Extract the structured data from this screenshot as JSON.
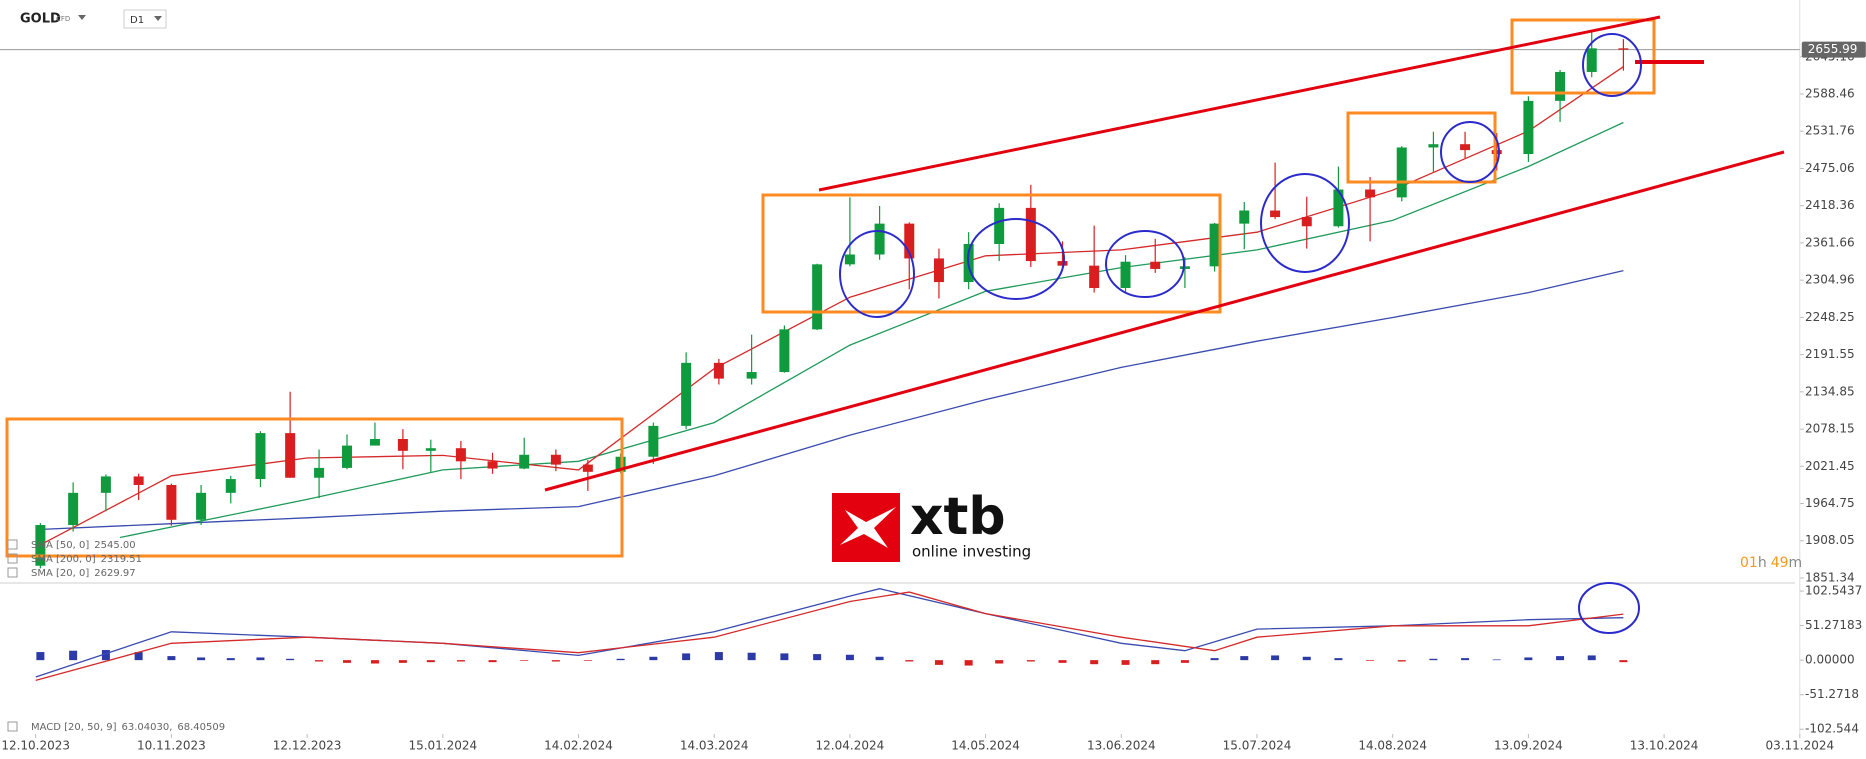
{
  "header": {
    "symbol": "GOLD",
    "badge": "CFD",
    "timeframe": "D1"
  },
  "countdown": {
    "hours": "01",
    "hours_unit": "h",
    "minutes": "49",
    "minutes_unit": "m"
  },
  "logo": {
    "brand": "xtb",
    "tagline": "online investing"
  },
  "chart_data": [
    {
      "type": "candlestick",
      "x": [
        "2023-10-13",
        "2023-10-20",
        "2023-10-27",
        "2023-11-03",
        "2023-11-10",
        "2023-11-17",
        "2023-11-24",
        "2023-12-01",
        "2023-12-08",
        "2023-12-15",
        "2023-12-22",
        "2023-12-29",
        "2024-01-05",
        "2024-01-12",
        "2024-01-19",
        "2024-01-26",
        "2024-02-02",
        "2024-02-09",
        "2024-02-16",
        "2024-02-23",
        "2024-03-01",
        "2024-03-08",
        "2024-03-15",
        "2024-03-22",
        "2024-03-29",
        "2024-04-05",
        "2024-04-12",
        "2024-04-19",
        "2024-04-26",
        "2024-05-03",
        "2024-05-10",
        "2024-05-17",
        "2024-05-24",
        "2024-05-31",
        "2024-06-07",
        "2024-06-14",
        "2024-06-21",
        "2024-06-28",
        "2024-07-05",
        "2024-07-12",
        "2024-07-19",
        "2024-07-26",
        "2024-08-02",
        "2024-08-09",
        "2024-08-16",
        "2024-08-23",
        "2024-08-30",
        "2024-09-06",
        "2024-09-13",
        "2024-09-20",
        "2024-09-27",
        "2024-10-04"
      ],
      "open": [
        1870,
        1932,
        1981,
        2006,
        1993,
        1940,
        1981,
        2002,
        2072,
        2004,
        2019,
        2053,
        2063,
        2045,
        2049,
        2029,
        2018,
        2039,
        2024,
        2013,
        2036,
        2083,
        2179,
        2155,
        2165,
        2230,
        2329,
        2344,
        2391,
        2338,
        2302,
        2360,
        2415,
        2334,
        2327,
        2293,
        2333,
        2322,
        2326,
        2391,
        2411,
        2401,
        2387,
        2443,
        2431,
        2507,
        2512,
        2503,
        2497,
        2578,
        2622,
        2658
      ],
      "high": [
        1935,
        1997,
        2009,
        2010,
        1995,
        1993,
        2007,
        2075,
        2135,
        2047,
        2070,
        2088,
        2078,
        2062,
        2060,
        2042,
        2065,
        2047,
        2031,
        2041,
        2088,
        2195,
        2185,
        2222,
        2236,
        2330,
        2431,
        2418,
        2393,
        2353,
        2378,
        2422,
        2450,
        2364,
        2388,
        2343,
        2368,
        2340,
        2392,
        2424,
        2484,
        2432,
        2478,
        2462,
        2509,
        2531,
        2531,
        2529,
        2585,
        2625,
        2685,
        2672
      ],
      "low": [
        1866,
        1922,
        1953,
        1970,
        1931,
        1932,
        1965,
        1990,
        2004,
        1973,
        2017,
        2053,
        2017,
        2013,
        2002,
        2010,
        2017,
        2014,
        1984,
        2011,
        2025,
        2078,
        2146,
        2146,
        2164,
        2229,
        2326,
        2336,
        2291,
        2277,
        2291,
        2334,
        2325,
        2320,
        2286,
        2287,
        2316,
        2293,
        2318,
        2352,
        2398,
        2353,
        2385,
        2364,
        2425,
        2470,
        2491,
        2472,
        2485,
        2546,
        2614,
        2624
      ],
      "close": [
        1932,
        1981,
        2006,
        1993,
        1940,
        1981,
        2002,
        2072,
        2004,
        2019,
        2053,
        2063,
        2045,
        2049,
        2029,
        2018,
        2039,
        2024,
        2013,
        2036,
        2083,
        2179,
        2155,
        2165,
        2230,
        2329,
        2344,
        2391,
        2338,
        2302,
        2360,
        2415,
        2334,
        2327,
        2293,
        2333,
        2322,
        2326,
        2391,
        2411,
        2401,
        2387,
        2443,
        2431,
        2507,
        2512,
        2503,
        2497,
        2578,
        2622,
        2658,
        2655.99
      ],
      "up_color": "#0f9a3e",
      "down_color": "#d81e1e",
      "ylim": [
        1843.7,
        2731.6
      ],
      "yticks": [
        1851.34,
        1908.05,
        1964.75,
        2021.45,
        2078.15,
        2134.85,
        2191.55,
        2248.25,
        2304.96,
        2361.66,
        2418.36,
        2475.06,
        2531.76,
        2588.46,
        2645.16
      ],
      "current_price": 2655.99,
      "series": [
        {
          "name": "SMA [50, 0]",
          "color": "#1f9a5a",
          "legend_label": "2545.00",
          "x": [
            "2023-10-30",
            "2023-12-12",
            "2024-01-15",
            "2024-02-14",
            "2024-03-14",
            "2024-04-12",
            "2024-05-14",
            "2024-06-13",
            "2024-07-15",
            "2024-08-14",
            "2024-09-13",
            "2024-10-04"
          ],
          "values": [
            1913,
            1971,
            2016,
            2029,
            2088,
            2206,
            2288,
            2324,
            2351,
            2396,
            2478,
            2545
          ]
        },
        {
          "name": "SMA [200, 0]",
          "color": "#3a4bb0",
          "legend_label": "2319.51",
          "x": [
            "2023-10-12",
            "2023-11-10",
            "2023-12-12",
            "2024-01-15",
            "2024-02-14",
            "2024-03-14",
            "2024-04-12",
            "2024-05-14",
            "2024-06-13",
            "2024-07-15",
            "2024-08-14",
            "2024-09-13",
            "2024-10-04"
          ],
          "values": [
            1925,
            1934,
            1943,
            1953,
            1960,
            2007,
            2069,
            2123,
            2172,
            2212,
            2248,
            2286,
            2319.51
          ]
        },
        {
          "name": "SMA [20, 0]",
          "color": "#d42a2a",
          "legend_label": "2629.97",
          "x": [
            "2023-10-12",
            "2023-11-10",
            "2023-12-12",
            "2024-01-15",
            "2024-02-14",
            "2024-03-14",
            "2024-04-12",
            "2024-05-14",
            "2024-06-13",
            "2024-07-15",
            "2024-08-14",
            "2024-09-13",
            "2024-10-04"
          ],
          "values": [
            1898,
            2007,
            2034,
            2038,
            2016,
            2170,
            2279,
            2342,
            2351,
            2378,
            2442,
            2532,
            2629.97
          ]
        }
      ]
    },
    {
      "type": "macd",
      "legend": {
        "label": "MACD [20, 50, 9]",
        "value_labels": [
          "63.04030,",
          "68.40509"
        ]
      },
      "xlim": [
        "2023-10-04",
        "2024-11-03"
      ],
      "xticks": [
        {
          "value": "2023-10-12",
          "label": "12.10.2023"
        },
        {
          "value": "2023-11-10",
          "label": "10.11.2023"
        },
        {
          "value": "2023-12-12",
          "label": "12.12.2023"
        },
        {
          "value": "2024-01-15",
          "label": "15.01.2024"
        },
        {
          "value": "2024-02-14",
          "label": "14.02.2024"
        },
        {
          "value": "2024-03-14",
          "label": "14.03.2024"
        },
        {
          "value": "2024-04-12",
          "label": "12.04.2024"
        },
        {
          "value": "2024-05-14",
          "label": "14.05.2024"
        },
        {
          "value": "2024-06-13",
          "label": "13.06.2024"
        },
        {
          "value": "2024-07-15",
          "label": "15.07.2024"
        },
        {
          "value": "2024-08-14",
          "label": "14.08.2024"
        },
        {
          "value": "2024-09-13",
          "label": "13.09.2024"
        },
        {
          "value": "2024-10-13",
          "label": "13.10.2024"
        },
        {
          "value": "2024-11-03",
          "label": "03.11.2024"
        }
      ],
      "ylim": [
        -109.6,
        113
      ],
      "yticks": [
        102.5437,
        51.27183,
        {
          "value": 0,
          "label": "0.00000"
        },
        -51.2718,
        -102.544
      ],
      "histogram": {
        "pos_color": "#2c3aa8",
        "neg_color": "#d81e1e",
        "x": [
          "2023-10-13",
          "2023-10-20",
          "2023-10-27",
          "2023-11-03",
          "2023-11-10",
          "2023-11-17",
          "2023-11-24",
          "2023-12-01",
          "2023-12-08",
          "2023-12-15",
          "2023-12-22",
          "2023-12-29",
          "2024-01-05",
          "2024-01-12",
          "2024-01-19",
          "2024-01-26",
          "2024-02-02",
          "2024-02-09",
          "2024-02-16",
          "2024-02-23",
          "2024-03-01",
          "2024-03-08",
          "2024-03-15",
          "2024-03-22",
          "2024-03-29",
          "2024-04-05",
          "2024-04-12",
          "2024-04-19",
          "2024-04-26",
          "2024-05-03",
          "2024-05-10",
          "2024-05-17",
          "2024-05-24",
          "2024-05-31",
          "2024-06-07",
          "2024-06-14",
          "2024-06-21",
          "2024-06-28",
          "2024-07-05",
          "2024-07-12",
          "2024-07-19",
          "2024-07-26",
          "2024-08-02",
          "2024-08-09",
          "2024-08-16",
          "2024-08-23",
          "2024-08-30",
          "2024-09-06",
          "2024-09-13",
          "2024-09-20",
          "2024-09-27",
          "2024-10-04"
        ],
        "values": [
          12,
          14,
          15,
          12,
          6,
          4,
          3,
          4,
          2,
          -2,
          -4,
          -5,
          -4,
          -3,
          -2,
          -3,
          -1,
          -2,
          -1,
          2,
          5,
          10,
          12,
          11,
          10,
          9,
          8,
          5,
          -2,
          -7,
          -8,
          -5,
          -2,
          -4,
          -6,
          -7,
          -6,
          -4,
          3,
          6,
          7,
          5,
          3,
          -1,
          -2,
          2,
          3,
          1,
          4,
          6,
          7,
          -3
        ]
      },
      "series": [
        {
          "color": "#3a4bb0",
          "x": [
            "2023-10-12",
            "2023-11-10",
            "2023-12-12",
            "2024-01-15",
            "2024-02-14",
            "2024-03-14",
            "2024-04-12",
            "2024-04-19",
            "2024-05-14",
            "2024-06-13",
            "2024-06-28",
            "2024-07-15",
            "2024-08-14",
            "2024-09-13",
            "2024-10-04"
          ],
          "values": [
            -25,
            42,
            34,
            25,
            7,
            42,
            95,
            106,
            69,
            25,
            14,
            46,
            51,
            60,
            63.0403
          ]
        },
        {
          "color": "#d42a2a",
          "x": [
            "2023-10-12",
            "2023-11-10",
            "2023-12-12",
            "2024-01-15",
            "2024-02-14",
            "2024-03-14",
            "2024-04-12",
            "2024-04-26",
            "2024-05-14",
            "2024-06-13",
            "2024-07-05",
            "2024-07-15",
            "2024-08-14",
            "2024-09-13",
            "2024-10-04"
          ],
          "values": [
            -30,
            25,
            34,
            25,
            11,
            34,
            87,
            101,
            69,
            34,
            14,
            34,
            51,
            51,
            68.40509
          ]
        }
      ]
    }
  ]
}
